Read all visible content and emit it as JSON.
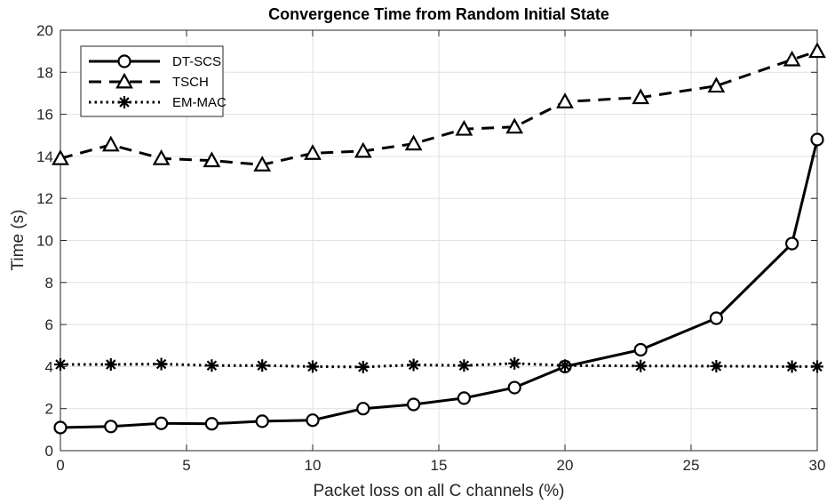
{
  "chart_data": {
    "type": "line",
    "title": "Convergence Time from Random Initial State",
    "xlabel": "Packet loss on all C channels (%)",
    "ylabel": "Time (s)",
    "xlim": [
      0,
      30
    ],
    "ylim": [
      0,
      20
    ],
    "xticks": [
      0,
      5,
      10,
      15,
      20,
      25,
      30
    ],
    "yticks": [
      0,
      2,
      4,
      6,
      8,
      10,
      12,
      14,
      16,
      18,
      20
    ],
    "grid": true,
    "legend_position": "top-left",
    "x": [
      0,
      2,
      4,
      6,
      8,
      10,
      12,
      14,
      16,
      18,
      20,
      23,
      26,
      29,
      30
    ],
    "series": [
      {
        "name": "DT-SCS",
        "marker": "circle",
        "line_style": "solid",
        "values": [
          1.1,
          1.15,
          1.3,
          1.28,
          1.4,
          1.45,
          2.0,
          2.2,
          2.5,
          3.0,
          4.0,
          4.8,
          6.3,
          9.85,
          14.8
        ]
      },
      {
        "name": "TSCH",
        "marker": "triangle",
        "line_style": "dashed",
        "values": [
          13.9,
          14.55,
          13.9,
          13.8,
          13.6,
          14.15,
          14.25,
          14.6,
          15.3,
          15.4,
          16.6,
          16.8,
          17.35,
          18.6,
          19.0
        ]
      },
      {
        "name": "EM-MAC",
        "marker": "asterisk",
        "line_style": "dotted",
        "values": [
          4.1,
          4.1,
          4.12,
          4.05,
          4.05,
          4.0,
          3.98,
          4.08,
          4.05,
          4.15,
          4.05,
          4.03,
          4.02,
          4.0,
          4.0
        ]
      }
    ],
    "colors": {
      "line": "#000000",
      "grid": "#e1e1e1",
      "axis": "#262626",
      "background": "#ffffff"
    }
  }
}
